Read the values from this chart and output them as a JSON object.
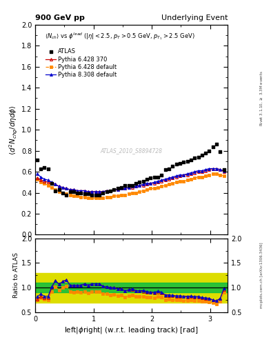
{
  "title_left": "900 GeV pp",
  "title_right": "Underlying Event",
  "ylabel_main": "$\\langle d^2 N_{chg}/d\\eta d\\phi \\rangle$",
  "ylabel_ratio": "Ratio to ATLAS",
  "xlabel": "left|$\\phi$right| (w.r.t. leading track) [rad]",
  "annotation": "$\\langle N_{ch}\\rangle$ vs $\\phi^{lead}$ ($|\\eta| < 2.5$, $p_T > 0.5$ GeV, $p_{T_1} > 2.5$ GeV)",
  "watermark": "ATLAS_2010_S8894728",
  "right_label": "mcplots.cern.ch [arXiv:1306.3436]",
  "right_label2": "Rivet 3.1.10, $\\geq$ 3.3M events",
  "ylim_main": [
    0.0,
    2.0
  ],
  "ylim_ratio": [
    0.5,
    2.0
  ],
  "xlim": [
    0.0,
    3.3
  ],
  "green_band": [
    0.9,
    1.1
  ],
  "yellow_band": [
    0.7,
    1.3
  ],
  "atlas_x": [
    0.031,
    0.094,
    0.157,
    0.22,
    0.283,
    0.346,
    0.408,
    0.471,
    0.534,
    0.597,
    0.66,
    0.723,
    0.785,
    0.848,
    0.911,
    0.974,
    1.037,
    1.1,
    1.162,
    1.225,
    1.288,
    1.351,
    1.414,
    1.476,
    1.539,
    1.602,
    1.665,
    1.728,
    1.79,
    1.853,
    1.916,
    1.979,
    2.042,
    2.105,
    2.167,
    2.23,
    2.293,
    2.356,
    2.419,
    2.481,
    2.544,
    2.607,
    2.67,
    2.733,
    2.796,
    2.858,
    2.921,
    2.984,
    3.047,
    3.11,
    3.173,
    3.236
  ],
  "atlas_y": [
    0.71,
    0.63,
    0.64,
    0.63,
    0.49,
    0.42,
    0.43,
    0.4,
    0.38,
    0.41,
    0.41,
    0.4,
    0.4,
    0.39,
    0.39,
    0.38,
    0.38,
    0.38,
    0.4,
    0.41,
    0.42,
    0.43,
    0.44,
    0.45,
    0.47,
    0.47,
    0.47,
    0.49,
    0.5,
    0.51,
    0.53,
    0.54,
    0.55,
    0.55,
    0.57,
    0.62,
    0.63,
    0.65,
    0.67,
    0.68,
    0.69,
    0.7,
    0.71,
    0.73,
    0.74,
    0.76,
    0.78,
    0.8,
    0.84,
    0.86,
    0.79,
    0.62
  ],
  "py6370_x": [
    0.031,
    0.094,
    0.157,
    0.22,
    0.283,
    0.346,
    0.408,
    0.471,
    0.534,
    0.597,
    0.66,
    0.723,
    0.785,
    0.848,
    0.911,
    0.974,
    1.037,
    1.1,
    1.162,
    1.225,
    1.288,
    1.351,
    1.414,
    1.476,
    1.539,
    1.602,
    1.665,
    1.728,
    1.79,
    1.853,
    1.916,
    1.979,
    2.042,
    2.105,
    2.167,
    2.23,
    2.293,
    2.356,
    2.419,
    2.481,
    2.544,
    2.607,
    2.67,
    2.733,
    2.796,
    2.858,
    2.921,
    2.984,
    3.047,
    3.11,
    3.173,
    3.236
  ],
  "py6370_y": [
    0.54,
    0.52,
    0.51,
    0.5,
    0.49,
    0.48,
    0.46,
    0.45,
    0.44,
    0.43,
    0.43,
    0.42,
    0.42,
    0.42,
    0.41,
    0.41,
    0.41,
    0.41,
    0.41,
    0.42,
    0.42,
    0.43,
    0.43,
    0.44,
    0.44,
    0.45,
    0.45,
    0.46,
    0.47,
    0.47,
    0.48,
    0.49,
    0.49,
    0.5,
    0.51,
    0.52,
    0.53,
    0.54,
    0.55,
    0.56,
    0.57,
    0.57,
    0.58,
    0.59,
    0.6,
    0.6,
    0.61,
    0.62,
    0.63,
    0.63,
    0.62,
    0.6
  ],
  "py6def_x": [
    0.031,
    0.094,
    0.157,
    0.22,
    0.283,
    0.346,
    0.408,
    0.471,
    0.534,
    0.597,
    0.66,
    0.723,
    0.785,
    0.848,
    0.911,
    0.974,
    1.037,
    1.1,
    1.162,
    1.225,
    1.288,
    1.351,
    1.414,
    1.476,
    1.539,
    1.602,
    1.665,
    1.728,
    1.79,
    1.853,
    1.916,
    1.979,
    2.042,
    2.105,
    2.167,
    2.23,
    2.293,
    2.356,
    2.419,
    2.481,
    2.544,
    2.607,
    2.67,
    2.733,
    2.796,
    2.858,
    2.921,
    2.984,
    3.047,
    3.11,
    3.173,
    3.236
  ],
  "py6def_y": [
    0.53,
    0.5,
    0.49,
    0.47,
    0.45,
    0.43,
    0.41,
    0.4,
    0.39,
    0.38,
    0.37,
    0.37,
    0.36,
    0.36,
    0.35,
    0.35,
    0.35,
    0.35,
    0.35,
    0.36,
    0.36,
    0.37,
    0.37,
    0.38,
    0.38,
    0.39,
    0.4,
    0.4,
    0.41,
    0.42,
    0.43,
    0.44,
    0.44,
    0.45,
    0.46,
    0.47,
    0.48,
    0.49,
    0.5,
    0.51,
    0.51,
    0.52,
    0.53,
    0.54,
    0.55,
    0.55,
    0.56,
    0.57,
    0.58,
    0.58,
    0.57,
    0.56
  ],
  "py8def_x": [
    0.031,
    0.094,
    0.157,
    0.22,
    0.283,
    0.346,
    0.408,
    0.471,
    0.534,
    0.597,
    0.66,
    0.723,
    0.785,
    0.848,
    0.911,
    0.974,
    1.037,
    1.1,
    1.162,
    1.225,
    1.288,
    1.351,
    1.414,
    1.476,
    1.539,
    1.602,
    1.665,
    1.728,
    1.79,
    1.853,
    1.916,
    1.979,
    2.042,
    2.105,
    2.167,
    2.23,
    2.293,
    2.356,
    2.419,
    2.481,
    2.544,
    2.607,
    2.67,
    2.733,
    2.796,
    2.858,
    2.921,
    2.984,
    3.047,
    3.11,
    3.173,
    3.236
  ],
  "py8def_y": [
    0.58,
    0.55,
    0.53,
    0.52,
    0.5,
    0.48,
    0.46,
    0.45,
    0.44,
    0.43,
    0.43,
    0.42,
    0.42,
    0.42,
    0.41,
    0.41,
    0.41,
    0.41,
    0.41,
    0.42,
    0.42,
    0.43,
    0.43,
    0.44,
    0.44,
    0.45,
    0.46,
    0.46,
    0.47,
    0.48,
    0.49,
    0.49,
    0.5,
    0.51,
    0.52,
    0.53,
    0.54,
    0.55,
    0.56,
    0.57,
    0.57,
    0.58,
    0.59,
    0.6,
    0.61,
    0.61,
    0.62,
    0.63,
    0.63,
    0.63,
    0.62,
    0.61
  ],
  "atlas_color": "#000000",
  "py6370_color": "#cc0000",
  "py6def_color": "#ff8800",
  "py8def_color": "#0000cc",
  "green_color": "#00bb44",
  "yellow_color": "#dddd00"
}
